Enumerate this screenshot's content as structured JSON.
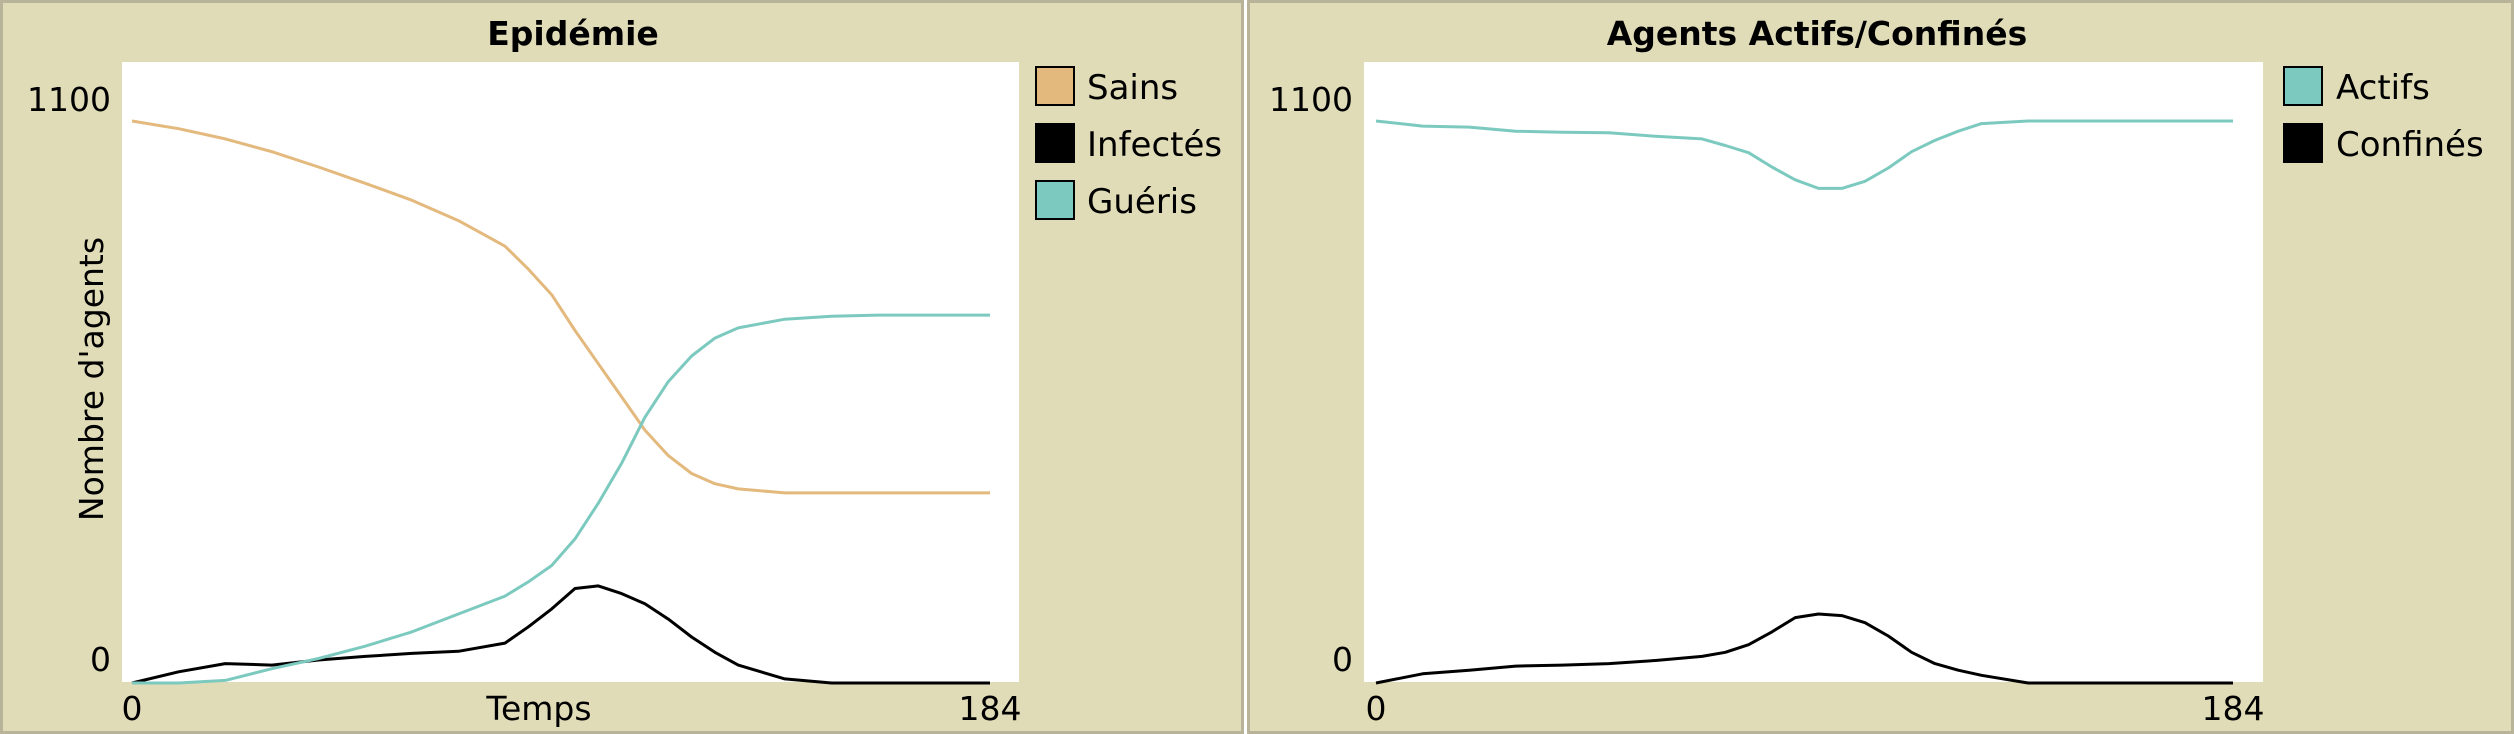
{
  "chart_data": [
    {
      "type": "line",
      "title": "Epidémie",
      "xlabel": "Temps",
      "ylabel": "Nombre d'agents",
      "xlim": [
        0,
        184
      ],
      "ylim": [
        0,
        1100
      ],
      "x_ticks": [
        "0",
        "184"
      ],
      "y_ticks": [
        "0",
        "1100"
      ],
      "legend_position": "right",
      "grid": false,
      "series": [
        {
          "name": "Sains",
          "color": "#e3b97d",
          "x": [
            0,
            10,
            20,
            30,
            40,
            50,
            60,
            70,
            80,
            85,
            90,
            95,
            100,
            105,
            110,
            115,
            120,
            125,
            130,
            140,
            150,
            160,
            170,
            184
          ],
          "y": [
            1100,
            1085,
            1065,
            1040,
            1010,
            978,
            945,
            905,
            855,
            810,
            760,
            690,
            625,
            560,
            495,
            445,
            410,
            390,
            380,
            372,
            372,
            372,
            372,
            372
          ]
        },
        {
          "name": "Infectés",
          "color": "#000000",
          "x": [
            0,
            10,
            20,
            30,
            40,
            50,
            60,
            70,
            80,
            85,
            90,
            95,
            100,
            105,
            110,
            115,
            120,
            125,
            130,
            140,
            150,
            160,
            170,
            184
          ],
          "y": [
            0,
            22,
            38,
            35,
            45,
            52,
            58,
            62,
            78,
            110,
            145,
            185,
            190,
            175,
            155,
            125,
            90,
            60,
            35,
            8,
            0,
            0,
            0,
            0
          ]
        },
        {
          "name": "Guéris",
          "color": "#7ccabf",
          "x": [
            0,
            10,
            20,
            30,
            40,
            50,
            60,
            70,
            80,
            85,
            90,
            95,
            100,
            105,
            110,
            115,
            120,
            125,
            130,
            140,
            150,
            160,
            170,
            184
          ],
          "y": [
            0,
            0,
            5,
            28,
            48,
            72,
            100,
            135,
            170,
            198,
            230,
            282,
            352,
            430,
            520,
            590,
            640,
            675,
            695,
            712,
            718,
            720,
            720,
            720
          ]
        }
      ]
    },
    {
      "type": "line",
      "title": "Agents Actifs/Confinés",
      "xlabel": "",
      "ylabel": "",
      "xlim": [
        0,
        184
      ],
      "ylim": [
        0,
        1100
      ],
      "x_ticks": [
        "0",
        "184"
      ],
      "y_ticks": [
        "0",
        "1100"
      ],
      "legend_position": "right",
      "grid": false,
      "series": [
        {
          "name": "Actifs",
          "color": "#7ccabf",
          "x": [
            0,
            10,
            20,
            30,
            40,
            50,
            60,
            70,
            75,
            80,
            85,
            90,
            95,
            100,
            105,
            110,
            115,
            120,
            125,
            130,
            140,
            150,
            160,
            170,
            184
          ],
          "y": [
            1100,
            1090,
            1088,
            1080,
            1078,
            1077,
            1070,
            1065,
            1052,
            1038,
            1010,
            985,
            968,
            968,
            982,
            1008,
            1040,
            1062,
            1080,
            1095,
            1100,
            1100,
            1100,
            1100,
            1100
          ]
        },
        {
          "name": "Confinés",
          "color": "#000000",
          "x": [
            0,
            10,
            20,
            30,
            40,
            50,
            60,
            70,
            75,
            80,
            85,
            90,
            95,
            100,
            105,
            110,
            115,
            120,
            125,
            130,
            140,
            150,
            160,
            170,
            184
          ],
          "y": [
            0,
            18,
            25,
            33,
            35,
            38,
            44,
            52,
            60,
            75,
            100,
            128,
            135,
            132,
            118,
            92,
            60,
            38,
            25,
            15,
            0,
            0,
            0,
            0,
            0
          ]
        }
      ]
    }
  ]
}
